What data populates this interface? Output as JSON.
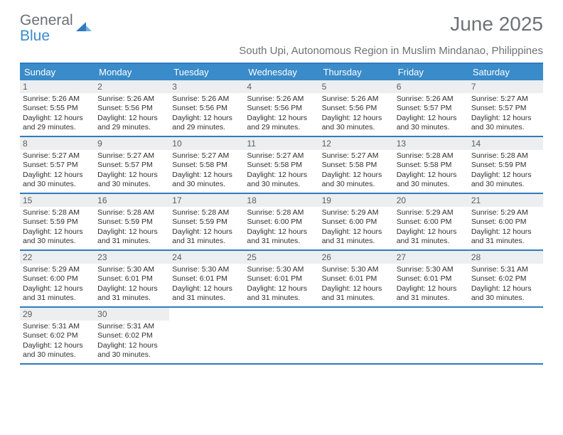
{
  "logo": {
    "word1": "General",
    "word2": "Blue",
    "word1_color": "#6b7074",
    "word2_color": "#3a8bc9",
    "icon_color": "#2f7bbf"
  },
  "title": "June 2025",
  "subtitle": "South Upi, Autonomous Region in Muslim Mindanao, Philippines",
  "colors": {
    "header_bg": "#3a8bc9",
    "header_text": "#ffffff",
    "border": "#2f7bbf",
    "daynum_bg": "#eceeef",
    "daynum_text": "#5c6063",
    "body_text": "#303030",
    "subtitle_text": "#6e7276"
  },
  "day_headers": [
    "Sunday",
    "Monday",
    "Tuesday",
    "Wednesday",
    "Thursday",
    "Friday",
    "Saturday"
  ],
  "weeks": [
    [
      {
        "day": "1",
        "sunrise": "Sunrise: 5:26 AM",
        "sunset": "Sunset: 5:55 PM",
        "daylight": "Daylight: 12 hours and 29 minutes."
      },
      {
        "day": "2",
        "sunrise": "Sunrise: 5:26 AM",
        "sunset": "Sunset: 5:56 PM",
        "daylight": "Daylight: 12 hours and 29 minutes."
      },
      {
        "day": "3",
        "sunrise": "Sunrise: 5:26 AM",
        "sunset": "Sunset: 5:56 PM",
        "daylight": "Daylight: 12 hours and 29 minutes."
      },
      {
        "day": "4",
        "sunrise": "Sunrise: 5:26 AM",
        "sunset": "Sunset: 5:56 PM",
        "daylight": "Daylight: 12 hours and 29 minutes."
      },
      {
        "day": "5",
        "sunrise": "Sunrise: 5:26 AM",
        "sunset": "Sunset: 5:56 PM",
        "daylight": "Daylight: 12 hours and 30 minutes."
      },
      {
        "day": "6",
        "sunrise": "Sunrise: 5:26 AM",
        "sunset": "Sunset: 5:57 PM",
        "daylight": "Daylight: 12 hours and 30 minutes."
      },
      {
        "day": "7",
        "sunrise": "Sunrise: 5:27 AM",
        "sunset": "Sunset: 5:57 PM",
        "daylight": "Daylight: 12 hours and 30 minutes."
      }
    ],
    [
      {
        "day": "8",
        "sunrise": "Sunrise: 5:27 AM",
        "sunset": "Sunset: 5:57 PM",
        "daylight": "Daylight: 12 hours and 30 minutes."
      },
      {
        "day": "9",
        "sunrise": "Sunrise: 5:27 AM",
        "sunset": "Sunset: 5:57 PM",
        "daylight": "Daylight: 12 hours and 30 minutes."
      },
      {
        "day": "10",
        "sunrise": "Sunrise: 5:27 AM",
        "sunset": "Sunset: 5:58 PM",
        "daylight": "Daylight: 12 hours and 30 minutes."
      },
      {
        "day": "11",
        "sunrise": "Sunrise: 5:27 AM",
        "sunset": "Sunset: 5:58 PM",
        "daylight": "Daylight: 12 hours and 30 minutes."
      },
      {
        "day": "12",
        "sunrise": "Sunrise: 5:27 AM",
        "sunset": "Sunset: 5:58 PM",
        "daylight": "Daylight: 12 hours and 30 minutes."
      },
      {
        "day": "13",
        "sunrise": "Sunrise: 5:28 AM",
        "sunset": "Sunset: 5:58 PM",
        "daylight": "Daylight: 12 hours and 30 minutes."
      },
      {
        "day": "14",
        "sunrise": "Sunrise: 5:28 AM",
        "sunset": "Sunset: 5:59 PM",
        "daylight": "Daylight: 12 hours and 30 minutes."
      }
    ],
    [
      {
        "day": "15",
        "sunrise": "Sunrise: 5:28 AM",
        "sunset": "Sunset: 5:59 PM",
        "daylight": "Daylight: 12 hours and 30 minutes."
      },
      {
        "day": "16",
        "sunrise": "Sunrise: 5:28 AM",
        "sunset": "Sunset: 5:59 PM",
        "daylight": "Daylight: 12 hours and 31 minutes."
      },
      {
        "day": "17",
        "sunrise": "Sunrise: 5:28 AM",
        "sunset": "Sunset: 5:59 PM",
        "daylight": "Daylight: 12 hours and 31 minutes."
      },
      {
        "day": "18",
        "sunrise": "Sunrise: 5:28 AM",
        "sunset": "Sunset: 6:00 PM",
        "daylight": "Daylight: 12 hours and 31 minutes."
      },
      {
        "day": "19",
        "sunrise": "Sunrise: 5:29 AM",
        "sunset": "Sunset: 6:00 PM",
        "daylight": "Daylight: 12 hours and 31 minutes."
      },
      {
        "day": "20",
        "sunrise": "Sunrise: 5:29 AM",
        "sunset": "Sunset: 6:00 PM",
        "daylight": "Daylight: 12 hours and 31 minutes."
      },
      {
        "day": "21",
        "sunrise": "Sunrise: 5:29 AM",
        "sunset": "Sunset: 6:00 PM",
        "daylight": "Daylight: 12 hours and 31 minutes."
      }
    ],
    [
      {
        "day": "22",
        "sunrise": "Sunrise: 5:29 AM",
        "sunset": "Sunset: 6:00 PM",
        "daylight": "Daylight: 12 hours and 31 minutes."
      },
      {
        "day": "23",
        "sunrise": "Sunrise: 5:30 AM",
        "sunset": "Sunset: 6:01 PM",
        "daylight": "Daylight: 12 hours and 31 minutes."
      },
      {
        "day": "24",
        "sunrise": "Sunrise: 5:30 AM",
        "sunset": "Sunset: 6:01 PM",
        "daylight": "Daylight: 12 hours and 31 minutes."
      },
      {
        "day": "25",
        "sunrise": "Sunrise: 5:30 AM",
        "sunset": "Sunset: 6:01 PM",
        "daylight": "Daylight: 12 hours and 31 minutes."
      },
      {
        "day": "26",
        "sunrise": "Sunrise: 5:30 AM",
        "sunset": "Sunset: 6:01 PM",
        "daylight": "Daylight: 12 hours and 31 minutes."
      },
      {
        "day": "27",
        "sunrise": "Sunrise: 5:30 AM",
        "sunset": "Sunset: 6:01 PM",
        "daylight": "Daylight: 12 hours and 31 minutes."
      },
      {
        "day": "28",
        "sunrise": "Sunrise: 5:31 AM",
        "sunset": "Sunset: 6:02 PM",
        "daylight": "Daylight: 12 hours and 30 minutes."
      }
    ],
    [
      {
        "day": "29",
        "sunrise": "Sunrise: 5:31 AM",
        "sunset": "Sunset: 6:02 PM",
        "daylight": "Daylight: 12 hours and 30 minutes."
      },
      {
        "day": "30",
        "sunrise": "Sunrise: 5:31 AM",
        "sunset": "Sunset: 6:02 PM",
        "daylight": "Daylight: 12 hours and 30 minutes."
      },
      null,
      null,
      null,
      null,
      null
    ]
  ]
}
